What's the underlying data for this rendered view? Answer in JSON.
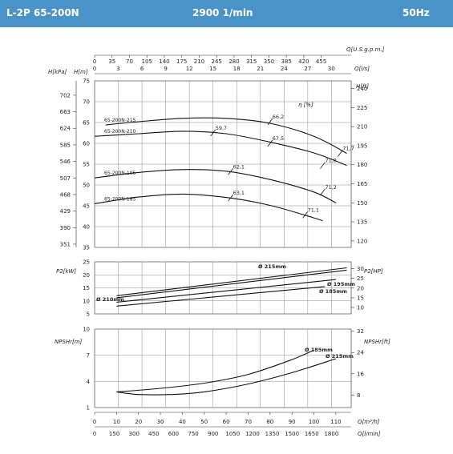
{
  "header": {
    "model": "L-2P 65-200N",
    "speed": "2900 1/min",
    "frequency": "50Hz"
  },
  "colors": {
    "header_bg": "#4a93c8",
    "header_text": "#ffffff",
    "curves": "#111111",
    "grid": "#555555"
  },
  "chart_data": [
    {
      "type": "line",
      "name": "head",
      "top_axis": {
        "label_usgpm": "Q[U.S.g.p.m.]",
        "ticks_usgpm": [
          0,
          35,
          70,
          105,
          140,
          175,
          210,
          245,
          280,
          315,
          350,
          385,
          420,
          455
        ],
        "label_ls": "Q[l/s]",
        "ticks_ls": [
          0,
          3,
          6,
          9,
          12,
          15,
          18,
          21,
          24,
          27,
          30
        ]
      },
      "ylabel_left": "H[m]",
      "ylabel_kpa": "H[kPa]",
      "ylabel_right": "H[ft]",
      "yticks_m": [
        75,
        70,
        65,
        60,
        55,
        50,
        45,
        40,
        35
      ],
      "yticks_kpa": [
        702,
        663,
        624,
        585,
        546,
        507,
        468,
        429,
        390,
        351
      ],
      "yticks_ft": [
        240,
        225,
        210,
        195,
        180,
        165,
        150,
        135,
        120
      ],
      "ylim": [
        35,
        75
      ],
      "efficiency_label": "η [%]",
      "series": [
        {
          "name": "65-200N-215",
          "x": [
            5,
            20,
            40,
            60,
            80,
            100,
            115
          ],
          "y": [
            64.4,
            65.2,
            66.0,
            66.0,
            64.8,
            61.7,
            57.6
          ]
        },
        {
          "name": "65-200N-210",
          "x": [
            0,
            20,
            40,
            60,
            80,
            100,
            115
          ],
          "y": [
            61.7,
            62.3,
            62.9,
            62.3,
            60.3,
            57.7,
            54.7
          ]
        },
        {
          "name": "65-200N-195",
          "x": [
            0,
            20,
            40,
            60,
            80,
            100,
            110
          ],
          "y": [
            51.7,
            53.0,
            53.7,
            53.3,
            51.3,
            48.3,
            45.7
          ]
        },
        {
          "name": "65-200N-185",
          "x": [
            0,
            20,
            40,
            60,
            80,
            100,
            104
          ],
          "y": [
            45.5,
            47.1,
            47.8,
            47.0,
            45.1,
            42.1,
            41.4
          ]
        }
      ],
      "efficiency_points": [
        {
          "label": "59,7",
          "q": 54,
          "h": 62.5
        },
        {
          "label": "66,2",
          "q": 80,
          "h": 65.2
        },
        {
          "label": "67,5",
          "q": 80,
          "h": 60.0
        },
        {
          "label": "71,7",
          "q": 112,
          "h": 57.6
        },
        {
          "label": "71,8",
          "q": 104,
          "h": 54.7
        },
        {
          "label": "62,1",
          "q": 62,
          "h": 53.2
        },
        {
          "label": "71,2",
          "q": 104,
          "h": 48.3
        },
        {
          "label": "63,1",
          "q": 62,
          "h": 46.9
        },
        {
          "label": "71,1",
          "q": 96,
          "h": 42.8
        }
      ]
    },
    {
      "type": "line",
      "name": "power",
      "ylabel_left": "P2[kW]",
      "ylabel_right": "P2[HP]",
      "yticks_kw": [
        25,
        20,
        15,
        10,
        5
      ],
      "yticks_hp": [
        30,
        25,
        20,
        15,
        10
      ],
      "ylim": [
        5,
        25
      ],
      "series": [
        {
          "name": "Ø 215mm",
          "x": [
            10,
            115
          ],
          "y": [
            12.0,
            22.7
          ]
        },
        {
          "name": "Ø 210mm",
          "x": [
            10,
            115
          ],
          "y": [
            11.2,
            21.8
          ]
        },
        {
          "name": "Ø 195mm",
          "x": [
            10,
            110
          ],
          "y": [
            9.5,
            18.2
          ]
        },
        {
          "name": "Ø 185mm",
          "x": [
            10,
            105
          ],
          "y": [
            8.0,
            15.5
          ]
        }
      ]
    },
    {
      "type": "line",
      "name": "npsh",
      "ylabel_left": "NPSHr[m]",
      "ylabel_right": "NPSHr[ft]",
      "yticks_m": [
        10,
        7,
        4,
        1
      ],
      "yticks_ft": [
        32,
        24,
        16,
        8
      ],
      "ylim": [
        1,
        10
      ],
      "series": [
        {
          "name": "Ø 185mm",
          "x": [
            10,
            30,
            50,
            70,
            90,
            100
          ],
          "y": [
            2.8,
            3.2,
            3.8,
            4.8,
            6.5,
            7.6
          ]
        },
        {
          "name": "Ø 215mm",
          "x": [
            10,
            20,
            35,
            50,
            70,
            90,
            110
          ],
          "y": [
            2.8,
            2.5,
            2.5,
            2.8,
            3.7,
            5.0,
            6.6
          ]
        }
      ],
      "bottom_axis": {
        "label_m3h": "Q[m³/h]",
        "ticks_m3h": [
          0,
          10,
          20,
          30,
          40,
          50,
          60,
          70,
          80,
          90,
          100,
          110
        ],
        "label_lmin": "Q[l/min]",
        "ticks_lmin": [
          0,
          150,
          300,
          450,
          600,
          750,
          900,
          1050,
          1200,
          1350,
          1500,
          1650,
          1800
        ]
      }
    }
  ]
}
